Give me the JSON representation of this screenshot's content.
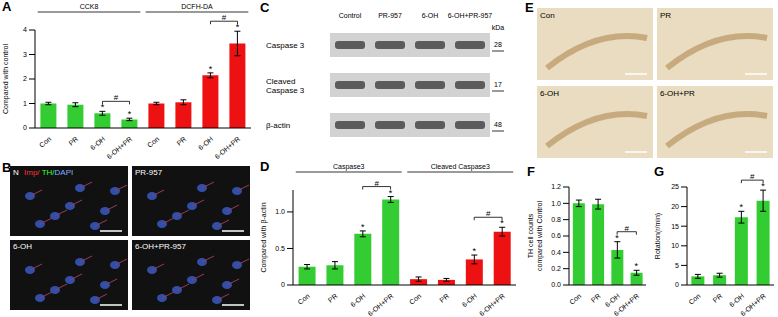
{
  "chart_data": [
    {
      "panel": "A",
      "type": "bar",
      "y_label": [
        "Compared with control"
      ],
      "categories": [
        "Con",
        "PR",
        "6-OH",
        "6-OH+PR",
        "Con",
        "PR",
        "6-OH",
        "6-OH+PR"
      ],
      "values": [
        1.0,
        0.95,
        0.6,
        0.35,
        1.0,
        1.05,
        2.15,
        3.45
      ],
      "errors": [
        0.05,
        0.08,
        0.08,
        0.05,
        0.05,
        0.1,
        0.1,
        0.5
      ],
      "colors": [
        "#33cc33",
        "#33cc33",
        "#33cc33",
        "#33cc33",
        "#ee1111",
        "#ee1111",
        "#ee1111",
        "#ee1111"
      ],
      "ylim": [
        0,
        4
      ],
      "yticks": [
        0,
        1,
        2,
        3,
        4
      ],
      "groups": [
        {
          "label": "CCK8",
          "from": 0,
          "to": 3
        },
        {
          "label": "DCFH-DA",
          "from": 4,
          "to": 7
        }
      ],
      "significance": [
        null,
        null,
        "*",
        "*",
        null,
        null,
        "*",
        "*"
      ],
      "brackets": [
        {
          "from": 2,
          "to": 3,
          "label": "#"
        },
        {
          "from": 6,
          "to": 7,
          "label": "#"
        }
      ]
    },
    {
      "panel": "D",
      "type": "bar",
      "y_label": [
        "Compared with β-actin"
      ],
      "categories": [
        "Con",
        "PR",
        "6-OH",
        "6-OH+PR",
        "Con",
        "PR",
        "6-OH",
        "6-OH+PR"
      ],
      "values": [
        0.25,
        0.27,
        0.7,
        1.17,
        0.08,
        0.07,
        0.35,
        0.73
      ],
      "errors": [
        0.03,
        0.05,
        0.04,
        0.04,
        0.03,
        0.02,
        0.06,
        0.06
      ],
      "colors": [
        "#33cc33",
        "#33cc33",
        "#33cc33",
        "#33cc33",
        "#ee1111",
        "#ee1111",
        "#ee1111",
        "#ee1111"
      ],
      "ylim": [
        0,
        1.3
      ],
      "yticks": [
        0,
        0.5,
        {
          "value": 1,
          "label": "1.0"
        }
      ],
      "groups": [
        {
          "label": "Caspase3",
          "from": 0,
          "to": 3
        },
        {
          "label": "Cleaved Caspase3",
          "from": 4,
          "to": 7
        }
      ],
      "significance": [
        null,
        null,
        "*",
        "*",
        null,
        null,
        "*",
        "*"
      ],
      "brackets": [
        {
          "from": 2,
          "to": 3,
          "label": "#"
        },
        {
          "from": 6,
          "to": 7,
          "label": "#"
        }
      ]
    },
    {
      "panel": "F",
      "type": "bar",
      "y_label": [
        "TH cell counts",
        "compared with Control"
      ],
      "categories": [
        "Con",
        "PR",
        "6-OH",
        "6-OH+PR"
      ],
      "values": [
        1.0,
        0.99,
        0.43,
        0.15
      ],
      "errors": [
        0.04,
        0.06,
        0.1,
        0.03
      ],
      "colors": [
        "#33cc33",
        "#33cc33",
        "#33cc33",
        "#33cc33"
      ],
      "ylim": [
        0,
        1.2
      ],
      "yticks": [
        {
          "value": 0,
          "label": "0.0"
        },
        0.2,
        0.4,
        0.6,
        0.8,
        {
          "value": 1,
          "label": "1.0"
        },
        1.2
      ],
      "significance": [
        null,
        null,
        "*",
        "*"
      ],
      "brackets": [
        {
          "from": 2,
          "to": 3,
          "label": "#"
        }
      ]
    },
    {
      "panel": "G",
      "type": "bar",
      "y_label": [
        "Rotation(r/min)"
      ],
      "categories": [
        "Con",
        "PR",
        "6-OH",
        "6-OH+PR"
      ],
      "values": [
        2.2,
        2.5,
        17.3,
        21.5
      ],
      "errors": [
        0.5,
        0.5,
        1.5,
        2.7
      ],
      "colors": [
        "#33cc33",
        "#33cc33",
        "#33cc33",
        "#33cc33"
      ],
      "ylim": [
        0,
        25
      ],
      "yticks": [
        0,
        5,
        10,
        15,
        20,
        25
      ],
      "significance": [
        null,
        null,
        "*",
        "*"
      ],
      "brackets": [
        {
          "from": 2,
          "to": 3,
          "label": "#"
        }
      ]
    }
  ],
  "panels": {
    "B": {
      "panel": "B",
      "images": [
        "N",
        "PR-957",
        "6-OH",
        "6-OH+PR-957"
      ],
      "stains": [
        {
          "text": "Imp/",
          "color": "#ff3030"
        },
        {
          "text": " TH/",
          "color": "#33ff33"
        },
        {
          "text": "DAPI",
          "color": "#7fb0ff"
        }
      ]
    },
    "C": {
      "panel": "C",
      "columns": [
        "Control",
        "PR-957",
        "6-OH",
        "6-OH+PR-957"
      ],
      "unit": "kDa",
      "rows": [
        {
          "label": [
            "Caspase 3"
          ],
          "kda": 28
        },
        {
          "label": [
            "Cleaved",
            "Caspase 3"
          ],
          "kda": 17
        },
        {
          "label": [
            "β-actin"
          ],
          "kda": 48
        }
      ]
    },
    "E": {
      "panel": "E",
      "images": [
        "Con",
        "PR",
        "6-OH",
        "6-OH+PR"
      ]
    }
  }
}
